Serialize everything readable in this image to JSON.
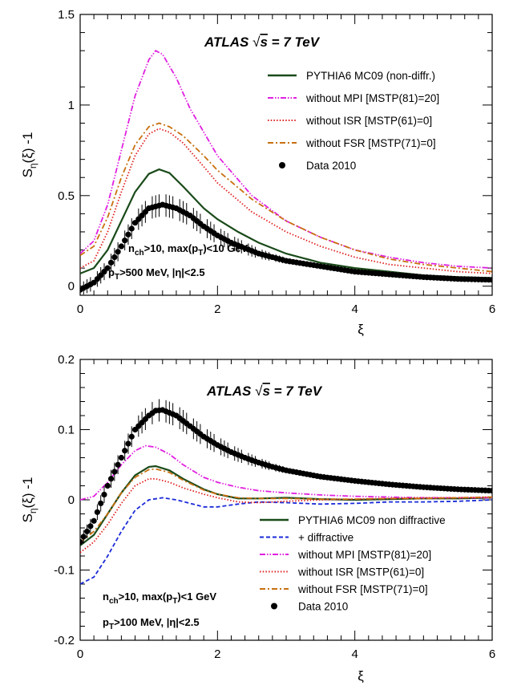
{
  "chart_data": [
    {
      "type": "line",
      "title": "ATLAS √s = 7 TeV",
      "title_parts": {
        "experiment": "ATLAS",
        "sqrt": "√",
        "s": "s",
        "energy": " = 7 TeV"
      },
      "xlabel": "ξ",
      "ylabel": {
        "base": "S",
        "sub": "η",
        "rest": "(ξ) -1"
      },
      "xlim": [
        0,
        6
      ],
      "ylim": [
        -0.05,
        1.5
      ],
      "xticks": [
        0,
        2,
        4,
        6
      ],
      "yticks": [
        0,
        0.5,
        1,
        1.5
      ],
      "ytick_labels": [
        "0",
        "0.5",
        "1",
        "1.5"
      ],
      "cuts": [
        {
          "parts": [
            {
              "t": "n"
            },
            {
              "t": "ch",
              "sub": true
            },
            {
              "t": ">10, max(p"
            },
            {
              "t": "T",
              "sub": true
            },
            {
              "t": ")<10 GeV"
            }
          ]
        },
        {
          "parts": [
            {
              "t": "p"
            },
            {
              "t": "T",
              "sub": true
            },
            {
              "t": ">500 MeV, |η|<2.5"
            }
          ]
        }
      ],
      "legend_position": "top-right",
      "series": [
        {
          "name": "PYTHIA6 MC09 (non-diffr.)",
          "color": "#1a4a1a",
          "dash": "solid",
          "x": [
            0,
            0.2,
            0.4,
            0.6,
            0.8,
            1.0,
            1.15,
            1.3,
            1.5,
            1.8,
            2.0,
            2.3,
            2.6,
            3.0,
            3.5,
            4.0,
            4.5,
            5.0,
            5.5,
            6.0
          ],
          "y": [
            0.07,
            0.1,
            0.2,
            0.36,
            0.52,
            0.62,
            0.645,
            0.625,
            0.55,
            0.43,
            0.37,
            0.3,
            0.24,
            0.18,
            0.13,
            0.1,
            0.08,
            0.06,
            0.05,
            0.045
          ]
        },
        {
          "name": "without MPI [MSTP(81)=20]",
          "color": "#e020e0",
          "dash": "dashdotdot",
          "x": [
            0,
            0.2,
            0.4,
            0.6,
            0.8,
            1.0,
            1.1,
            1.2,
            1.4,
            1.6,
            2.0,
            2.5,
            3.0,
            3.5,
            4.0,
            4.5,
            5.0,
            5.5,
            6.0
          ],
          "y": [
            0.18,
            0.25,
            0.45,
            0.75,
            1.05,
            1.25,
            1.3,
            1.28,
            1.15,
            0.98,
            0.72,
            0.5,
            0.36,
            0.27,
            0.2,
            0.16,
            0.13,
            0.11,
            0.1
          ]
        },
        {
          "name": "without ISR [MSTP(61)=0]",
          "color": "#e02020",
          "dash": "dotted",
          "x": [
            0,
            0.2,
            0.4,
            0.6,
            0.8,
            1.0,
            1.15,
            1.3,
            1.5,
            1.8,
            2.0,
            2.5,
            3.0,
            3.5,
            4.0,
            4.5,
            5.0,
            5.5,
            6.0
          ],
          "y": [
            0.1,
            0.14,
            0.3,
            0.52,
            0.72,
            0.84,
            0.87,
            0.85,
            0.79,
            0.66,
            0.57,
            0.41,
            0.3,
            0.22,
            0.16,
            0.12,
            0.1,
            0.08,
            0.07
          ]
        },
        {
          "name": "without FSR [MSTP(71)=0]",
          "color": "#c87010",
          "dash": "dashdot",
          "x": [
            0,
            0.2,
            0.4,
            0.6,
            0.8,
            1.0,
            1.15,
            1.3,
            1.5,
            1.8,
            2.0,
            2.5,
            3.0,
            3.5,
            4.0,
            4.5,
            5.0,
            5.5,
            6.0
          ],
          "y": [
            0.17,
            0.22,
            0.38,
            0.6,
            0.78,
            0.88,
            0.9,
            0.88,
            0.83,
            0.72,
            0.64,
            0.48,
            0.36,
            0.27,
            0.2,
            0.15,
            0.12,
            0.1,
            0.08
          ]
        },
        {
          "name": "Data 2010",
          "color": "#000000",
          "marker": "circle",
          "errors": true,
          "x": [
            0,
            0.2,
            0.4,
            0.6,
            0.8,
            1.0,
            1.2,
            1.4,
            1.6,
            1.8,
            2.0,
            2.2,
            2.4,
            2.6,
            2.8,
            3.0,
            3.5,
            4.0,
            4.5,
            5.0,
            5.5,
            6.0
          ],
          "y": [
            -0.02,
            0.02,
            0.1,
            0.22,
            0.35,
            0.43,
            0.45,
            0.43,
            0.39,
            0.33,
            0.28,
            0.24,
            0.21,
            0.18,
            0.16,
            0.14,
            0.11,
            0.08,
            0.065,
            0.05,
            0.04,
            0.035
          ]
        }
      ]
    },
    {
      "type": "line",
      "title": "ATLAS √s = 7 TeV",
      "title_parts": {
        "experiment": "ATLAS",
        "sqrt": "√",
        "s": "s",
        "energy": " = 7 TeV"
      },
      "xlabel": "ξ",
      "ylabel": {
        "base": "S",
        "sub": "η",
        "rest": "(ξ) -1"
      },
      "xlim": [
        0,
        6
      ],
      "ylim": [
        -0.2,
        0.2
      ],
      "xticks": [
        0,
        2,
        4,
        6
      ],
      "yticks": [
        -0.2,
        -0.1,
        0,
        0.1,
        0.2
      ],
      "ytick_labels": [
        "-0.2",
        "-0.1",
        "0",
        "0.1",
        "0.2"
      ],
      "cuts": [
        {
          "parts": [
            {
              "t": "n"
            },
            {
              "t": "ch",
              "sub": true
            },
            {
              "t": ">10, max(p"
            },
            {
              "t": "T",
              "sub": true
            },
            {
              "t": ")<1 GeV"
            }
          ]
        },
        {
          "parts": [
            {
              "t": "p"
            },
            {
              "t": "T",
              "sub": true
            },
            {
              "t": ">100 MeV, |η|<2.5"
            }
          ]
        }
      ],
      "legend_position": "bottom-right",
      "series": [
        {
          "name": "PYTHIA6 MC09 non diffractive",
          "color": "#1a4a1a",
          "dash": "solid",
          "x": [
            0,
            0.2,
            0.4,
            0.6,
            0.8,
            1.0,
            1.1,
            1.3,
            1.5,
            1.8,
            2.0,
            2.3,
            2.6,
            3.0,
            3.5,
            4.0,
            4.5,
            5.0,
            5.5,
            6.0
          ],
          "y": [
            -0.065,
            -0.05,
            -0.02,
            0.01,
            0.035,
            0.047,
            0.048,
            0.042,
            0.03,
            0.015,
            0.008,
            0.002,
            0.002,
            0.003,
            0.001,
            0.0,
            0.001,
            0.002,
            0.002,
            0.003
          ]
        },
        {
          "name": "+ diffractive",
          "color": "#1a2ad8",
          "dash": "dashed",
          "x": [
            0,
            0.2,
            0.4,
            0.6,
            0.8,
            1.0,
            1.2,
            1.4,
            1.6,
            1.8,
            2.0,
            2.3,
            2.6,
            3.0,
            3.5,
            4.0,
            4.5,
            5.0,
            5.5,
            6.0
          ],
          "y": [
            -0.12,
            -0.11,
            -0.08,
            -0.045,
            -0.015,
            0.0,
            0.003,
            0.0,
            -0.005,
            -0.01,
            -0.01,
            -0.006,
            -0.003,
            -0.004,
            -0.006,
            -0.005,
            -0.003,
            -0.003,
            -0.002,
            0.0
          ]
        },
        {
          "name": "without MPI [MSTP(81)=20]",
          "color": "#e020e0",
          "dash": "dashdotdot",
          "x": [
            0,
            0.2,
            0.4,
            0.6,
            0.8,
            0.95,
            1.1,
            1.3,
            1.5,
            1.8,
            2.0,
            2.3,
            2.6,
            3.0,
            3.5,
            4.0,
            4.5,
            5.0,
            5.5,
            6.0
          ],
          "y": [
            0.0,
            0.005,
            0.025,
            0.05,
            0.07,
            0.077,
            0.075,
            0.065,
            0.05,
            0.032,
            0.025,
            0.018,
            0.013,
            0.01,
            0.007,
            0.005,
            0.004,
            0.003,
            0.003,
            0.003
          ]
        },
        {
          "name": "without ISR [MSTP(61)=0]",
          "color": "#e02020",
          "dash": "dotted",
          "x": [
            0,
            0.2,
            0.4,
            0.6,
            0.8,
            1.0,
            1.1,
            1.3,
            1.5,
            1.8,
            2.0,
            2.3,
            2.6,
            3.0,
            3.5,
            4.0,
            4.5,
            5.0,
            5.5,
            6.0
          ],
          "y": [
            -0.075,
            -0.06,
            -0.035,
            -0.005,
            0.02,
            0.03,
            0.03,
            0.025,
            0.017,
            0.008,
            0.003,
            -0.003,
            -0.004,
            -0.002,
            0.0,
            0.001,
            0.002,
            0.003,
            0.003,
            0.004
          ]
        },
        {
          "name": "without FSR [MSTP(71)=0]",
          "color": "#c87010",
          "dash": "dashdot",
          "x": [
            0,
            0.2,
            0.4,
            0.6,
            0.8,
            1.0,
            1.1,
            1.3,
            1.5,
            1.8,
            2.0,
            2.3,
            2.6,
            3.0,
            3.5,
            4.0,
            4.5,
            5.0,
            5.5,
            6.0
          ],
          "y": [
            -0.06,
            -0.045,
            -0.02,
            0.01,
            0.032,
            0.043,
            0.044,
            0.039,
            0.028,
            0.014,
            0.008,
            0.003,
            0.002,
            0.002,
            0.001,
            0.001,
            0.002,
            0.002,
            0.003,
            0.004
          ]
        },
        {
          "name": "Data 2010",
          "color": "#000000",
          "marker": "circle",
          "errors": true,
          "x": [
            0,
            0.2,
            0.4,
            0.6,
            0.8,
            1.0,
            1.1,
            1.2,
            1.4,
            1.6,
            1.8,
            2.0,
            2.2,
            2.4,
            2.6,
            2.8,
            3.0,
            3.5,
            4.0,
            4.5,
            5.0,
            5.5,
            6.0
          ],
          "y": [
            -0.06,
            -0.03,
            0.02,
            0.06,
            0.1,
            0.12,
            0.127,
            0.128,
            0.12,
            0.105,
            0.09,
            0.078,
            0.068,
            0.06,
            0.053,
            0.047,
            0.042,
            0.033,
            0.027,
            0.022,
            0.018,
            0.015,
            0.013
          ]
        }
      ]
    }
  ]
}
